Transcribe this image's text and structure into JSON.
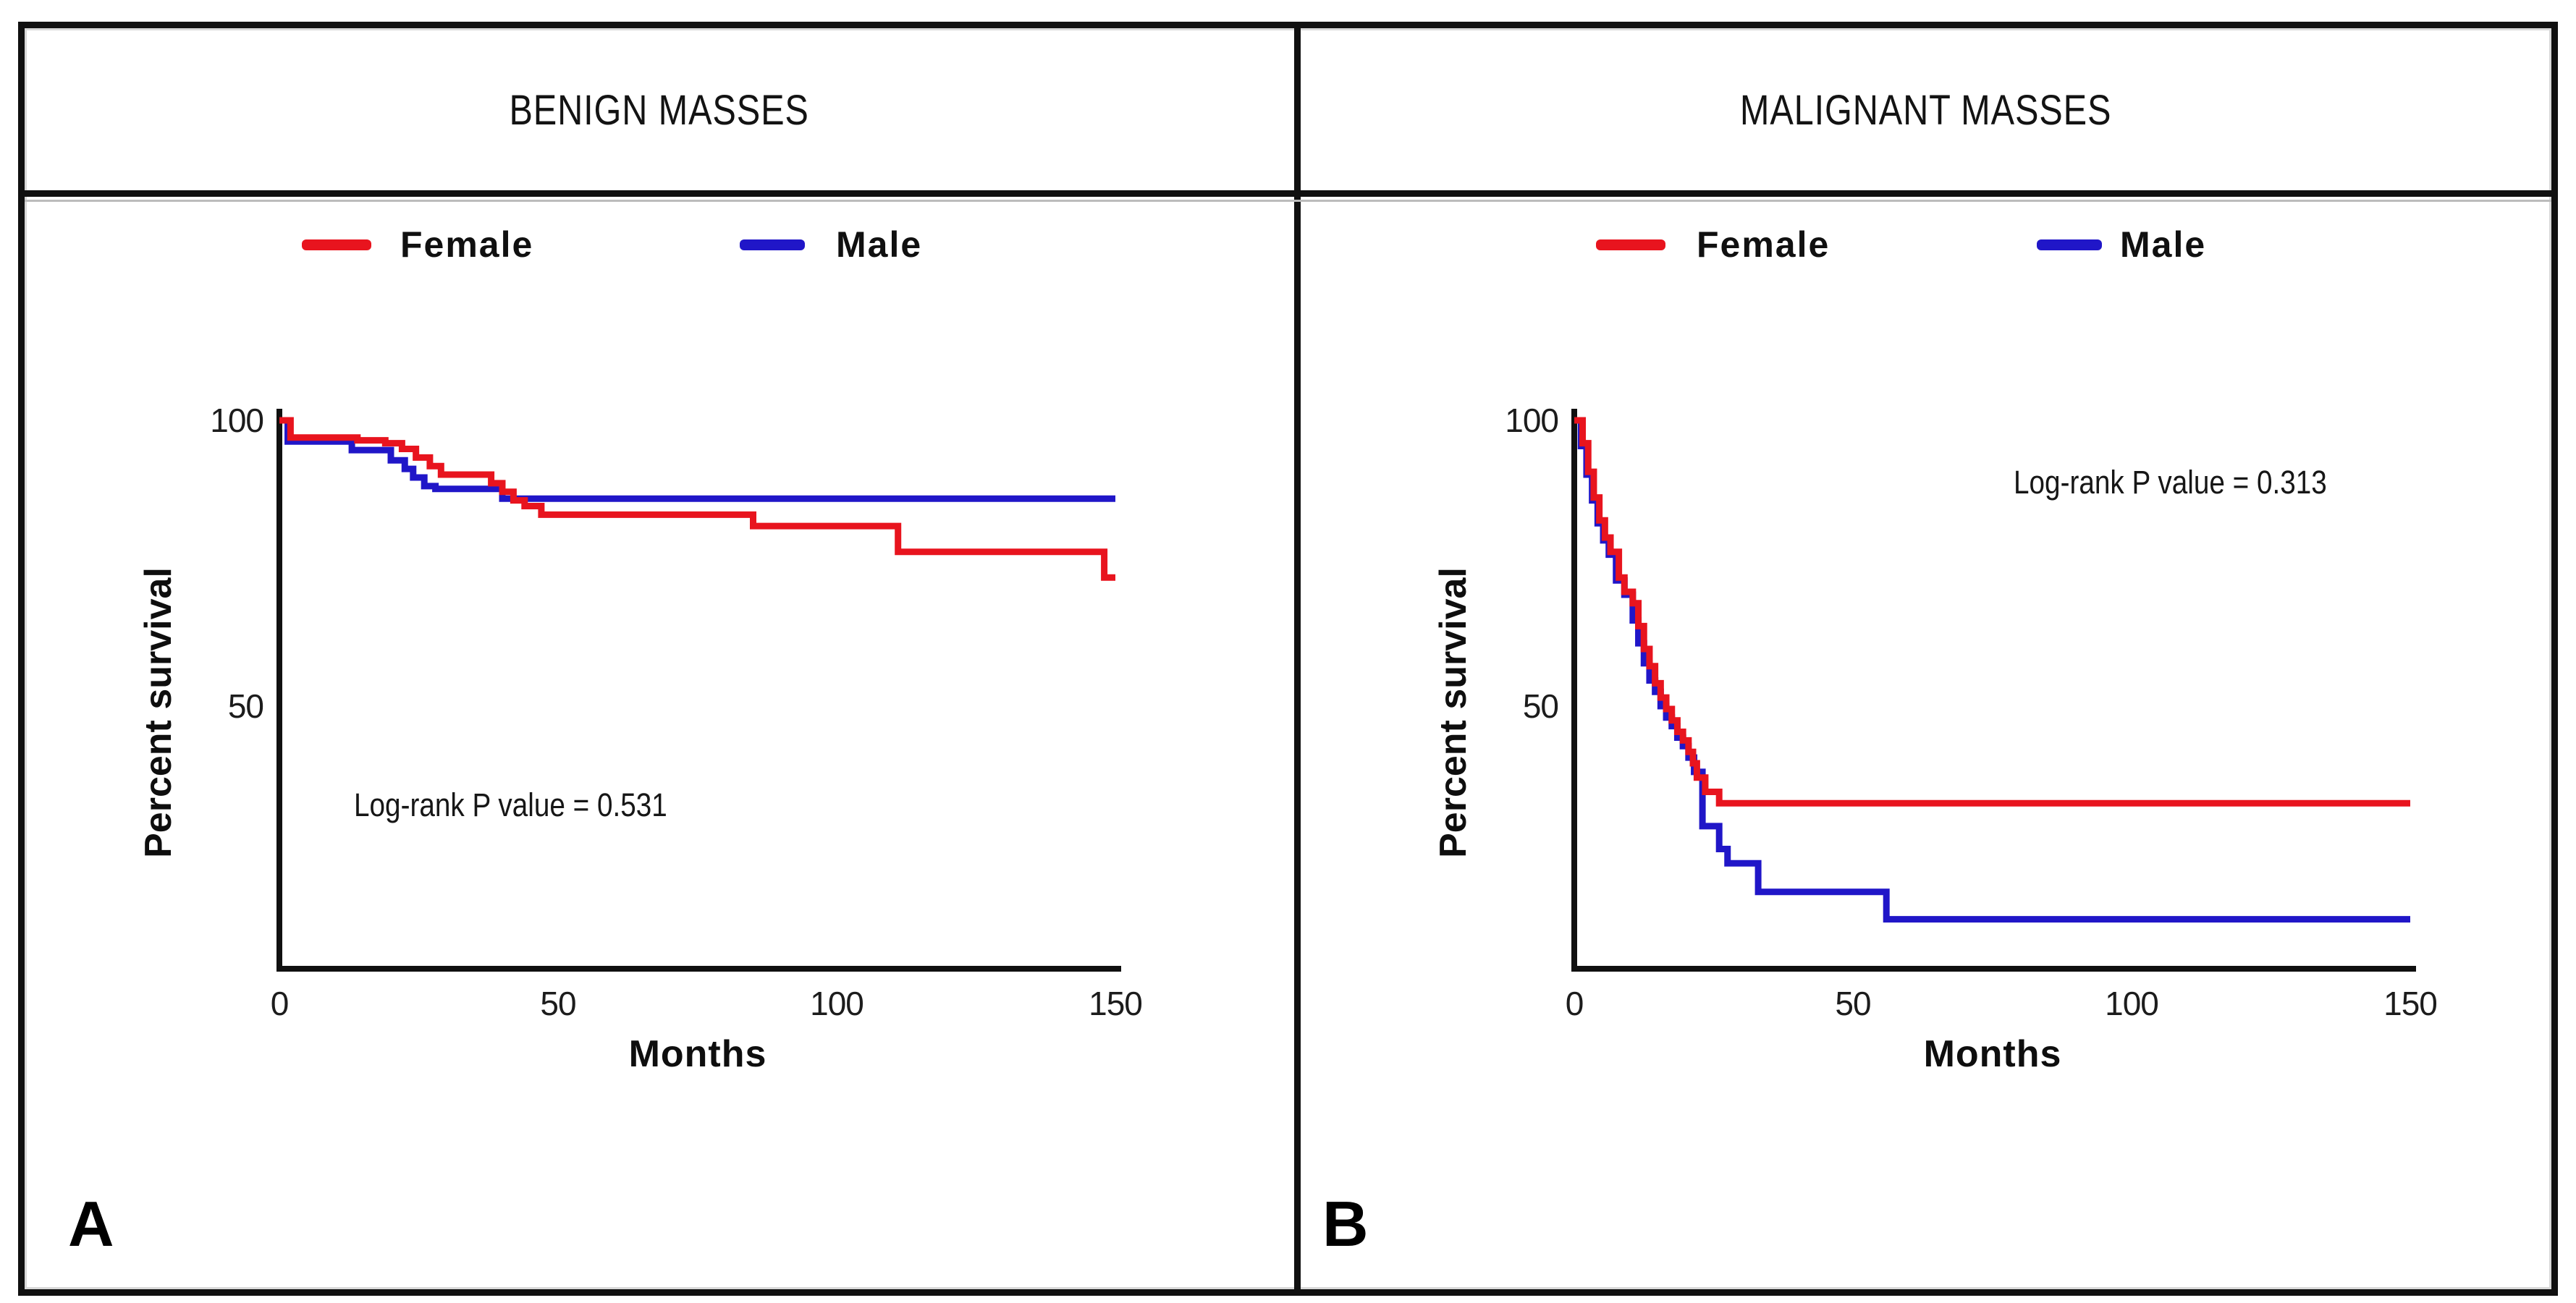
{
  "panel_labels": [
    "A",
    "B"
  ],
  "colors": {
    "axis": "#101010",
    "text": "#1a1a1a",
    "female": "#e8141e",
    "male": "#2016c8"
  },
  "chart_data": [
    {
      "type": "line",
      "panel": "A",
      "title": "BENIGN MASSES",
      "xlabel": "Months",
      "ylabel": "Percent survival",
      "annotation": "Log-rank P value = 0.531",
      "xlim": [
        0,
        150
      ],
      "ylim": [
        0,
        105
      ],
      "xticks": [
        0,
        50,
        100,
        150
      ],
      "yticks": [
        100,
        50
      ],
      "grid": false,
      "legend_position": "top",
      "step": "step-after",
      "series": [
        {
          "name": "Male",
          "color": "#2016c8",
          "points": [
            [
              0,
              100
            ],
            [
              1.5,
              96.3
            ],
            [
              13,
              94.8
            ],
            [
              20,
              93
            ],
            [
              22.5,
              91.5
            ],
            [
              24,
              90
            ],
            [
              26,
              88.5
            ],
            [
              28,
              88
            ],
            [
              40,
              86.3
            ],
            [
              150,
              86.3
            ]
          ]
        },
        {
          "name": "Female",
          "color": "#e8141e",
          "points": [
            [
              0,
              100
            ],
            [
              2,
              97
            ],
            [
              14,
              96.5
            ],
            [
              19,
              96
            ],
            [
              22,
              95
            ],
            [
              24.5,
              93.5
            ],
            [
              27,
              92
            ],
            [
              29,
              90.5
            ],
            [
              38,
              89
            ],
            [
              40,
              87.5
            ],
            [
              42,
              86
            ],
            [
              44,
              85
            ],
            [
              47,
              83.5
            ],
            [
              85,
              81.5
            ],
            [
              111,
              77
            ],
            [
              148,
              72.5
            ],
            [
              150,
              72.5
            ]
          ]
        }
      ]
    },
    {
      "type": "line",
      "panel": "B",
      "title": "MALIGNANT MASSES",
      "xlabel": "Months",
      "ylabel": "Percent survival",
      "annotation": "Log-rank P value = 0.313",
      "xlim": [
        0,
        150
      ],
      "ylim": [
        0,
        105
      ],
      "xticks": [
        0,
        50,
        100,
        150
      ],
      "yticks": [
        100,
        50
      ],
      "grid": false,
      "legend_position": "top",
      "step": "step-after",
      "series": [
        {
          "name": "Male",
          "color": "#2016c8",
          "points": [
            [
              0,
              100
            ],
            [
              1.2,
              95.5
            ],
            [
              2.2,
              90.5
            ],
            [
              3.2,
              86
            ],
            [
              4.2,
              82
            ],
            [
              5.2,
              79
            ],
            [
              6.2,
              76.5
            ],
            [
              7.5,
              72
            ],
            [
              9,
              69.5
            ],
            [
              10.5,
              65
            ],
            [
              11.5,
              61
            ],
            [
              12.5,
              57.5
            ],
            [
              13.5,
              54.5
            ],
            [
              14.5,
              52.5
            ],
            [
              15.5,
              50
            ],
            [
              16.5,
              48
            ],
            [
              17.5,
              46.5
            ],
            [
              18.5,
              44.5
            ],
            [
              19.5,
              43
            ],
            [
              20.5,
              41
            ],
            [
              21.5,
              38.5
            ],
            [
              23,
              29
            ],
            [
              26,
              25
            ],
            [
              27.5,
              22.5
            ],
            [
              33,
              17.5
            ],
            [
              56,
              12.7
            ],
            [
              150,
              12.7
            ]
          ]
        },
        {
          "name": "Female",
          "color": "#e8141e",
          "points": [
            [
              0,
              100
            ],
            [
              1.5,
              96
            ],
            [
              2.5,
              91
            ],
            [
              3.5,
              86.5
            ],
            [
              4.5,
              82.5
            ],
            [
              5.5,
              79.5
            ],
            [
              6.5,
              77
            ],
            [
              8,
              72.5
            ],
            [
              9,
              70
            ],
            [
              10.5,
              68
            ],
            [
              11.5,
              64
            ],
            [
              12.5,
              60
            ],
            [
              13.5,
              57
            ],
            [
              14.5,
              54
            ],
            [
              15.5,
              51.5
            ],
            [
              16.5,
              49.5
            ],
            [
              17.5,
              47.5
            ],
            [
              18.5,
              45.5
            ],
            [
              19.5,
              44
            ],
            [
              20.5,
              42
            ],
            [
              21.3,
              40
            ],
            [
              22,
              37.5
            ],
            [
              23.5,
              35
            ],
            [
              26,
              33
            ],
            [
              150,
              33
            ]
          ]
        }
      ]
    }
  ]
}
